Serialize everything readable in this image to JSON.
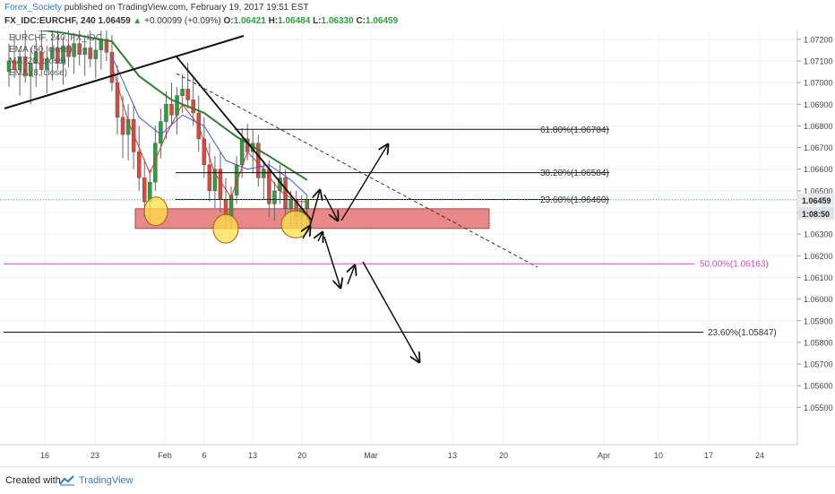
{
  "header": {
    "user": "Forex_Society",
    "published_text": "published on TradingView.com, February 19, 2017 19:51 EST",
    "symbol": "FX_IDC:EURCHF, 240",
    "last": "1.06459",
    "change_arrow": "▲",
    "change": "+0.00099 (+0.09%)",
    "o_label": "O:",
    "o_value": "1.06421",
    "h_label": "H:",
    "h_value": "1.06484",
    "l_label": "L:",
    "l_value": "1.06330",
    "c_label": "C:",
    "c_value": "1.06459"
  },
  "legend": {
    "items": [
      "EURCHF, 240, FX_IDC",
      "EMA (50, close)",
      "MA (20, close)",
      "EMA (8, close)"
    ]
  },
  "footer": {
    "created_with": "Created with",
    "brand": "TradingView"
  },
  "colors": {
    "up": "#2e9e3e",
    "down": "#d94a3e",
    "ema50": "#2e7d32",
    "ma20": "#3b5bdb",
    "ema8": "#e03131",
    "zone": "#e57373",
    "fib_pink": "#e040c8",
    "brand": "#2a7bd1",
    "highlight": "#fde047"
  },
  "chart_data": {
    "type": "candlestick",
    "symbol": "FX_IDC:EURCHF",
    "timeframe": "240",
    "ylim": [
      1.0545,
      1.0731
    ],
    "y_ticks": [
      "1.07200",
      "1.07100",
      "1.07000",
      "1.06900",
      "1.06800",
      "1.06700",
      "1.06600",
      "1.06500",
      "1.06400",
      "1.06300",
      "1.06200",
      "1.06100",
      "1.06000",
      "1.05900",
      "1.05800",
      "1.05700",
      "1.05600",
      "1.05500"
    ],
    "x_ticks": [
      "16",
      "23",
      "Feb",
      "6",
      "13",
      "20",
      "Mar",
      "13",
      "20",
      "Apr",
      "10",
      "17",
      "24"
    ],
    "last_price": "1.06459",
    "countdown": "1:08:50",
    "candles": [
      [
        1.0705,
        1.0718,
        1.0698,
        1.071
      ],
      [
        1.071,
        1.0722,
        1.0702,
        1.0706
      ],
      [
        1.0706,
        1.0715,
        1.0694,
        1.0712
      ],
      [
        1.0712,
        1.0725,
        1.07,
        1.0703
      ],
      [
        1.0703,
        1.0716,
        1.069,
        1.0709
      ],
      [
        1.0709,
        1.072,
        1.0698,
        1.0714
      ],
      [
        1.0714,
        1.0724,
        1.0703,
        1.0706
      ],
      [
        1.0706,
        1.0717,
        1.0695,
        1.0711
      ],
      [
        1.0711,
        1.0726,
        1.0701,
        1.0716
      ],
      [
        1.0716,
        1.0728,
        1.0706,
        1.0709
      ],
      [
        1.0709,
        1.0721,
        1.0699,
        1.0717
      ],
      [
        1.0717,
        1.0729,
        1.0707,
        1.0712
      ],
      [
        1.0712,
        1.0723,
        1.0704,
        1.0718
      ],
      [
        1.0718,
        1.073,
        1.0708,
        1.0713
      ],
      [
        1.0713,
        1.0722,
        1.0703,
        1.0716
      ],
      [
        1.0716,
        1.0727,
        1.0707,
        1.0711
      ],
      [
        1.0711,
        1.072,
        1.0702,
        1.0715
      ],
      [
        1.0715,
        1.0728,
        1.0706,
        1.072
      ],
      [
        1.072,
        1.073,
        1.071,
        1.0714
      ],
      [
        1.0714,
        1.0722,
        1.0696,
        1.07
      ],
      [
        1.07,
        1.0708,
        1.0676,
        1.0684
      ],
      [
        1.0684,
        1.0694,
        1.0665,
        1.0676
      ],
      [
        1.0676,
        1.069,
        1.0664,
        1.0683
      ],
      [
        1.0683,
        1.069,
        1.066,
        1.0668
      ],
      [
        1.0668,
        1.068,
        1.065,
        1.0656
      ],
      [
        1.0656,
        1.0664,
        1.0638,
        1.0645
      ],
      [
        1.0645,
        1.066,
        1.0636,
        1.0654
      ],
      [
        1.0654,
        1.068,
        1.065,
        1.0672
      ],
      [
        1.0672,
        1.0688,
        1.0665,
        1.0682
      ],
      [
        1.0682,
        1.0696,
        1.0674,
        1.069
      ],
      [
        1.069,
        1.07,
        1.068,
        1.0685
      ],
      [
        1.0685,
        1.0698,
        1.0676,
        1.0694
      ],
      [
        1.0694,
        1.0704,
        1.0686,
        1.0697
      ],
      [
        1.0697,
        1.0709,
        1.0688,
        1.0692
      ],
      [
        1.0692,
        1.0702,
        1.068,
        1.0686
      ],
      [
        1.0686,
        1.0694,
        1.0668,
        1.0674
      ],
      [
        1.0674,
        1.0684,
        1.0656,
        1.0662
      ],
      [
        1.0662,
        1.0672,
        1.0645,
        1.065
      ],
      [
        1.065,
        1.0666,
        1.0642,
        1.066
      ],
      [
        1.066,
        1.0668,
        1.064,
        1.0646
      ],
      [
        1.0646,
        1.0656,
        1.0632,
        1.0638
      ],
      [
        1.0638,
        1.0652,
        1.0632,
        1.0648
      ],
      [
        1.0648,
        1.0666,
        1.0644,
        1.0662
      ],
      [
        1.0662,
        1.0679,
        1.0656,
        1.0674
      ],
      [
        1.0674,
        1.0681,
        1.0664,
        1.0668
      ],
      [
        1.0668,
        1.0678,
        1.0658,
        1.0672
      ],
      [
        1.0672,
        1.0676,
        1.0652,
        1.0656
      ],
      [
        1.0656,
        1.0664,
        1.0646,
        1.066
      ],
      [
        1.066,
        1.0664,
        1.0638,
        1.0644
      ],
      [
        1.0644,
        1.0654,
        1.0636,
        1.065
      ],
      [
        1.065,
        1.0662,
        1.0644,
        1.0656
      ],
      [
        1.0656,
        1.066,
        1.0638,
        1.0642
      ],
      [
        1.0642,
        1.065,
        1.0634,
        1.0646
      ],
      [
        1.0646,
        1.065,
        1.0634,
        1.0638
      ],
      [
        1.0638,
        1.0648,
        1.0633,
        1.0642
      ],
      [
        1.0642,
        1.0648,
        1.0633,
        1.0646
      ]
    ],
    "indicators": {
      "ema50": [
        [
          0,
          1.0726
        ],
        [
          10,
          1.0723
        ],
        [
          19,
          1.0719
        ],
        [
          24,
          1.0703
        ],
        [
          30,
          1.0692
        ],
        [
          36,
          1.0686
        ],
        [
          42,
          1.0675
        ],
        [
          48,
          1.0666
        ],
        [
          55,
          1.0655
        ]
      ],
      "ma20": [
        [
          19,
          1.0712
        ],
        [
          24,
          1.0684
        ],
        [
          28,
          1.0676
        ],
        [
          32,
          1.0685
        ],
        [
          36,
          1.068
        ],
        [
          40,
          1.0664
        ],
        [
          44,
          1.066
        ],
        [
          48,
          1.0662
        ],
        [
          52,
          1.0655
        ],
        [
          55,
          1.0648
        ]
      ],
      "ema8": [
        [
          19,
          1.0708
        ],
        [
          22,
          1.0682
        ],
        [
          26,
          1.0658
        ],
        [
          29,
          1.0676
        ],
        [
          32,
          1.069
        ],
        [
          35,
          1.068
        ],
        [
          38,
          1.0658
        ],
        [
          41,
          1.0647
        ],
        [
          44,
          1.0668
        ],
        [
          47,
          1.066
        ],
        [
          50,
          1.065
        ],
        [
          53,
          1.0645
        ],
        [
          55,
          1.0645
        ]
      ]
    },
    "fibonacci_levels": [
      {
        "label": "61.80%(1.06784)",
        "price": 1.06784
      },
      {
        "label": "38.20%(1.06584)",
        "price": 1.06584
      },
      {
        "label": "23.60%(1.06460)",
        "price": 1.0646
      },
      {
        "label": "50.00%(1.06163)",
        "price": 1.06163
      },
      {
        "label": "23.60%(1.05847)",
        "price": 1.05847
      }
    ],
    "support_zone": {
      "from": 1.0629,
      "to": 1.0638
    },
    "annotations": [
      "ascending trendline",
      "descending trendline",
      "dashed trendline",
      "three circled lows",
      "projected zig-zag arrows"
    ]
  }
}
